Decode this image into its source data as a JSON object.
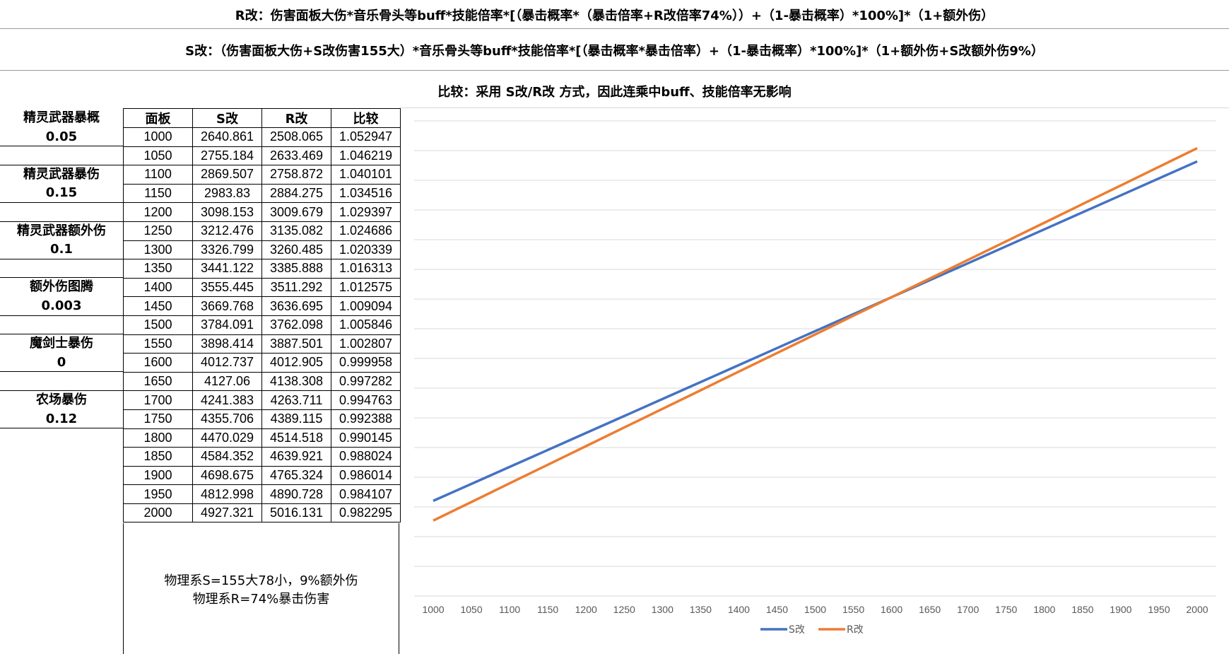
{
  "formulas": {
    "r_formula": "R改：伤害面板大伤*音乐骨头等buff*技能倍率*[（暴击概率*（暴击倍率+R改倍率74%））+（1-暴击概率）*100%]*（1+额外伤）",
    "s_formula": "S改：（伤害面板大伤+S改伤害155大）*音乐骨头等buff*技能倍率*[（暴击概率*暴击倍率）+（1-暴击概率）*100%]*（1+额外伤+S改额外伤9%）",
    "comparison_note": "比较：采用 S改/R改 方式，因此连乘中buff、技能倍率无影响"
  },
  "params": [
    {
      "label": "精灵武器暴概",
      "value": "0.05"
    },
    {
      "label": "精灵武器暴伤",
      "value": "0.15"
    },
    {
      "label": "精灵武器额外伤",
      "value": "0.1"
    },
    {
      "label": "额外伤图腾",
      "value": "0.003"
    },
    {
      "label": "魔剑士暴伤",
      "value": "0"
    },
    {
      "label": "农场暴伤",
      "value": "0.12"
    }
  ],
  "table": {
    "headers": [
      "面板",
      "S改",
      "R改",
      "比较"
    ],
    "rows": [
      [
        "1000",
        "2640.861",
        "2508.065",
        "1.052947"
      ],
      [
        "1050",
        "2755.184",
        "2633.469",
        "1.046219"
      ],
      [
        "1100",
        "2869.507",
        "2758.872",
        "1.040101"
      ],
      [
        "1150",
        "2983.83",
        "2884.275",
        "1.034516"
      ],
      [
        "1200",
        "3098.153",
        "3009.679",
        "1.029397"
      ],
      [
        "1250",
        "3212.476",
        "3135.082",
        "1.024686"
      ],
      [
        "1300",
        "3326.799",
        "3260.485",
        "1.020339"
      ],
      [
        "1350",
        "3441.122",
        "3385.888",
        "1.016313"
      ],
      [
        "1400",
        "3555.445",
        "3511.292",
        "1.012575"
      ],
      [
        "1450",
        "3669.768",
        "3636.695",
        "1.009094"
      ],
      [
        "1500",
        "3784.091",
        "3762.098",
        "1.005846"
      ],
      [
        "1550",
        "3898.414",
        "3887.501",
        "1.002807"
      ],
      [
        "1600",
        "4012.737",
        "4012.905",
        "0.999958"
      ],
      [
        "1650",
        "4127.06",
        "4138.308",
        "0.997282"
      ],
      [
        "1700",
        "4241.383",
        "4263.711",
        "0.994763"
      ],
      [
        "1750",
        "4355.706",
        "4389.115",
        "0.992388"
      ],
      [
        "1800",
        "4470.029",
        "4514.518",
        "0.990145"
      ],
      [
        "1850",
        "4584.352",
        "4639.921",
        "0.988024"
      ],
      [
        "1900",
        "4698.675",
        "4765.324",
        "0.986014"
      ],
      [
        "1950",
        "4812.998",
        "4890.728",
        "0.984107"
      ],
      [
        "2000",
        "4927.321",
        "5016.131",
        "0.982295"
      ]
    ]
  },
  "notes": [
    "物理系S=155大78小，9%额外伤",
    "物理系R=74%暴击伤害"
  ],
  "chart_data": {
    "type": "line",
    "categories": [
      "1000",
      "1050",
      "1100",
      "1150",
      "1200",
      "1250",
      "1300",
      "1350",
      "1400",
      "1450",
      "1500",
      "1550",
      "1600",
      "1650",
      "1700",
      "1750",
      "1800",
      "1850",
      "1900",
      "1950",
      "2000"
    ],
    "series": [
      {
        "name": "S改",
        "color": "#4472C4",
        "values": [
          2640.861,
          2755.184,
          2869.507,
          2983.83,
          3098.153,
          3212.476,
          3326.799,
          3441.122,
          3555.445,
          3669.768,
          3784.091,
          3898.414,
          4012.737,
          4127.06,
          4241.383,
          4355.706,
          4470.029,
          4584.352,
          4698.675,
          4812.998,
          4927.321
        ]
      },
      {
        "name": "R改",
        "color": "#ED7D31",
        "values": [
          2508.065,
          2633.469,
          2758.872,
          2884.275,
          3009.679,
          3135.082,
          3260.485,
          3385.888,
          3511.292,
          3636.695,
          3762.098,
          3887.501,
          4012.905,
          4138.308,
          4263.711,
          4389.115,
          4514.518,
          4639.921,
          4765.324,
          4890.728,
          5016.131
        ]
      }
    ],
    "ylim": [
      2000,
      5200
    ],
    "grid": true,
    "y_tick_labels_shown": false,
    "legend": "bottom-center",
    "gridline_color": "#d9d9d9",
    "axis_label_color": "#595959"
  }
}
